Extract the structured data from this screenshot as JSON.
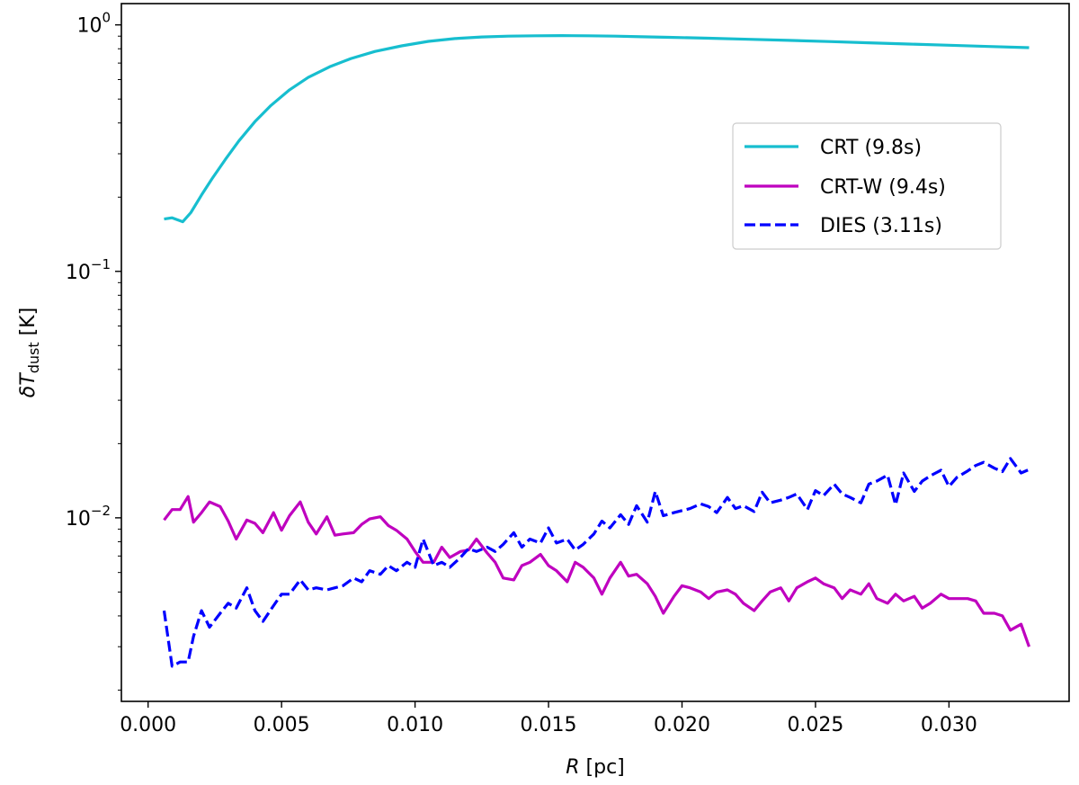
{
  "chart_data": {
    "type": "line",
    "title": "",
    "xlabel": {
      "symbol": "R",
      "unit": " [pc]"
    },
    "ylabel": {
      "symbol": "δT",
      "subscript": "dust",
      "unit": " [K]"
    },
    "xlim": [
      -0.001,
      0.0345
    ],
    "ylim": [
      0.0018,
      1.22
    ],
    "yscale": "log",
    "x_ticks": [
      0.0,
      0.005,
      0.01,
      0.015,
      0.02,
      0.025,
      0.03
    ],
    "x_tick_labels": [
      "0.000",
      "0.005",
      "0.010",
      "0.015",
      "0.020",
      "0.025",
      "0.030"
    ],
    "y_ticks": [
      {
        "value": 1.0,
        "base": "10",
        "exp": "0"
      },
      {
        "value": 0.1,
        "base": "10",
        "exp": "−1"
      },
      {
        "value": 0.01,
        "base": "10",
        "exp": "−2"
      }
    ],
    "grid": false,
    "legend_position": "upper-right",
    "series": [
      {
        "name": "CRT (9.8s)",
        "color": "#17becf",
        "style": "solid",
        "x": [
          0.0006,
          0.0009,
          0.0013,
          0.0016,
          0.002,
          0.0024,
          0.0029,
          0.0034,
          0.004,
          0.0046,
          0.0053,
          0.006,
          0.0068,
          0.0076,
          0.0085,
          0.0095,
          0.0105,
          0.0115,
          0.0125,
          0.0135,
          0.0145,
          0.0155,
          0.0165,
          0.0175,
          0.0185,
          0.0195,
          0.021,
          0.0225,
          0.024,
          0.0255,
          0.027,
          0.0285,
          0.03,
          0.0315,
          0.033
        ],
        "y": [
          0.163,
          0.165,
          0.159,
          0.173,
          0.204,
          0.238,
          0.285,
          0.338,
          0.405,
          0.471,
          0.545,
          0.612,
          0.676,
          0.73,
          0.78,
          0.822,
          0.857,
          0.88,
          0.893,
          0.9,
          0.903,
          0.905,
          0.903,
          0.9,
          0.895,
          0.89,
          0.883,
          0.874,
          0.865,
          0.856,
          0.846,
          0.836,
          0.827,
          0.817,
          0.808
        ]
      },
      {
        "name": "CRT-W (9.4s)",
        "color": "#bf00bf",
        "style": "solid",
        "x": [
          0.0006,
          0.0009,
          0.0012,
          0.0015,
          0.0017,
          0.002,
          0.0023,
          0.0027,
          0.003,
          0.0033,
          0.0037,
          0.004,
          0.0043,
          0.0047,
          0.005,
          0.0053,
          0.0057,
          0.006,
          0.0063,
          0.0067,
          0.007,
          0.0073,
          0.0077,
          0.008,
          0.0083,
          0.0087,
          0.009,
          0.0093,
          0.0097,
          0.01,
          0.0103,
          0.0107,
          0.011,
          0.0113,
          0.0117,
          0.012,
          0.0123,
          0.0127,
          0.013,
          0.0133,
          0.0137,
          0.014,
          0.0143,
          0.0147,
          0.015,
          0.0153,
          0.0157,
          0.016,
          0.0163,
          0.0167,
          0.017,
          0.0173,
          0.0177,
          0.018,
          0.0183,
          0.0187,
          0.019,
          0.0193,
          0.0197,
          0.02,
          0.0203,
          0.0207,
          0.021,
          0.0213,
          0.0217,
          0.022,
          0.0223,
          0.0227,
          0.023,
          0.0233,
          0.0237,
          0.024,
          0.0243,
          0.0247,
          0.025,
          0.0253,
          0.0257,
          0.026,
          0.0263,
          0.0267,
          0.027,
          0.0273,
          0.0277,
          0.028,
          0.0283,
          0.0287,
          0.029,
          0.0293,
          0.0297,
          0.03,
          0.0303,
          0.0307,
          0.031,
          0.0313,
          0.0317,
          0.032,
          0.0323,
          0.0327,
          0.033
        ],
        "y": [
          0.0098,
          0.0108,
          0.0108,
          0.0122,
          0.0096,
          0.0105,
          0.0116,
          0.0111,
          0.0097,
          0.0082,
          0.0098,
          0.0095,
          0.0087,
          0.0105,
          0.0089,
          0.0102,
          0.0116,
          0.0096,
          0.0086,
          0.0101,
          0.0085,
          0.0086,
          0.0087,
          0.0094,
          0.0099,
          0.0101,
          0.0093,
          0.0089,
          0.0082,
          0.0073,
          0.0066,
          0.0066,
          0.0076,
          0.0069,
          0.0073,
          0.0074,
          0.0082,
          0.0072,
          0.0066,
          0.0057,
          0.0056,
          0.0064,
          0.0066,
          0.0071,
          0.0064,
          0.0061,
          0.0055,
          0.0066,
          0.0063,
          0.0057,
          0.0049,
          0.0057,
          0.0066,
          0.0058,
          0.0059,
          0.0054,
          0.0048,
          0.0041,
          0.0048,
          0.0053,
          0.0052,
          0.005,
          0.0047,
          0.005,
          0.0051,
          0.0049,
          0.0045,
          0.0042,
          0.0046,
          0.005,
          0.0052,
          0.0046,
          0.0052,
          0.0055,
          0.0057,
          0.0054,
          0.0052,
          0.0047,
          0.0051,
          0.0049,
          0.0054,
          0.0047,
          0.0045,
          0.0049,
          0.0046,
          0.0048,
          0.0043,
          0.0045,
          0.0049,
          0.0047,
          0.0047,
          0.0047,
          0.0046,
          0.0041,
          0.0041,
          0.004,
          0.0035,
          0.0037,
          0.003
        ]
      },
      {
        "name": "DIES (3.11s)",
        "color": "#0000ff",
        "style": "dashed",
        "x": [
          0.0006,
          0.0009,
          0.0012,
          0.0015,
          0.0017,
          0.002,
          0.0023,
          0.0027,
          0.003,
          0.0033,
          0.0037,
          0.004,
          0.0043,
          0.0047,
          0.005,
          0.0053,
          0.0057,
          0.006,
          0.0063,
          0.0067,
          0.007,
          0.0073,
          0.0077,
          0.008,
          0.0083,
          0.0087,
          0.009,
          0.0093,
          0.0097,
          0.01,
          0.0103,
          0.0107,
          0.011,
          0.0113,
          0.0117,
          0.012,
          0.0123,
          0.0127,
          0.013,
          0.0133,
          0.0137,
          0.014,
          0.0143,
          0.0147,
          0.015,
          0.0153,
          0.0157,
          0.016,
          0.0163,
          0.0167,
          0.017,
          0.0173,
          0.0177,
          0.018,
          0.0183,
          0.0187,
          0.019,
          0.0193,
          0.0197,
          0.02,
          0.0203,
          0.0207,
          0.021,
          0.0213,
          0.0217,
          0.022,
          0.0223,
          0.0227,
          0.023,
          0.0233,
          0.0237,
          0.024,
          0.0243,
          0.0247,
          0.025,
          0.0253,
          0.0257,
          0.026,
          0.0263,
          0.0267,
          0.027,
          0.0273,
          0.0277,
          0.028,
          0.0283,
          0.0287,
          0.029,
          0.0293,
          0.0297,
          0.03,
          0.0303,
          0.0307,
          0.031,
          0.0313,
          0.0317,
          0.032,
          0.0323,
          0.0327,
          0.033
        ],
        "y": [
          0.0042,
          0.0025,
          0.0026,
          0.0026,
          0.0033,
          0.0042,
          0.0036,
          0.0041,
          0.0045,
          0.0043,
          0.0052,
          0.0042,
          0.0038,
          0.0044,
          0.0049,
          0.0049,
          0.0056,
          0.0051,
          0.0052,
          0.0051,
          0.0052,
          0.0053,
          0.0057,
          0.0055,
          0.0061,
          0.0059,
          0.0064,
          0.0061,
          0.0066,
          0.0063,
          0.0082,
          0.0064,
          0.0066,
          0.0063,
          0.0069,
          0.0075,
          0.0073,
          0.0076,
          0.0073,
          0.0078,
          0.0087,
          0.0076,
          0.0082,
          0.0079,
          0.0091,
          0.0079,
          0.0082,
          0.0074,
          0.0078,
          0.0086,
          0.0097,
          0.0091,
          0.0103,
          0.0094,
          0.0112,
          0.0096,
          0.0128,
          0.0102,
          0.0105,
          0.0107,
          0.0109,
          0.0114,
          0.0111,
          0.0105,
          0.0121,
          0.0109,
          0.0112,
          0.0106,
          0.0127,
          0.0115,
          0.0118,
          0.0121,
          0.0125,
          0.0108,
          0.0129,
          0.0123,
          0.0137,
          0.0125,
          0.0121,
          0.0115,
          0.0137,
          0.0141,
          0.0149,
          0.0113,
          0.0152,
          0.0128,
          0.0141,
          0.0148,
          0.0156,
          0.0134,
          0.0146,
          0.0155,
          0.0163,
          0.0168,
          0.0159,
          0.0154,
          0.0174,
          0.0152,
          0.0157
        ]
      }
    ]
  }
}
